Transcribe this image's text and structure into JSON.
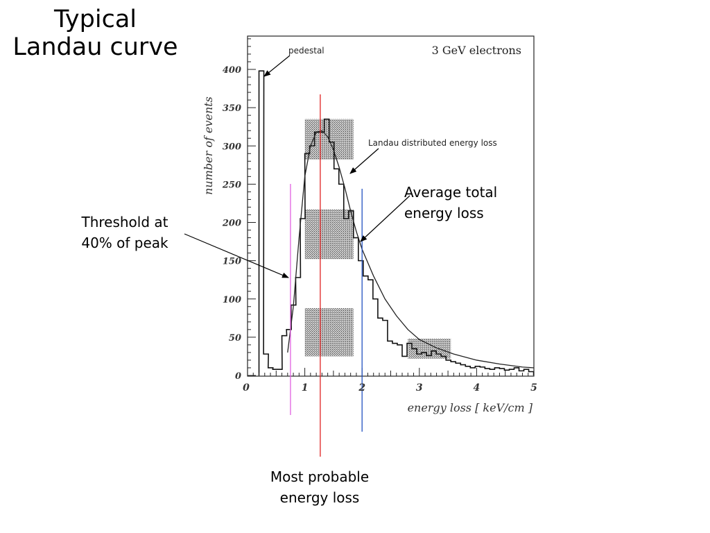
{
  "slide": {
    "title_line1": "Typical",
    "title_line2": "Landau curve",
    "threshold_line1": "Threshold at",
    "threshold_line2": "40% of peak",
    "average_line1": "Average total",
    "average_line2": "energy loss",
    "mpv_line1": "Most probable",
    "mpv_line2": "energy loss"
  },
  "chart_data": {
    "type": "bar",
    "title": "3 GeV electrons",
    "xlabel": "energy loss [ keV/cm ]",
    "ylabel": "number of events",
    "xlim": [
      0,
      5
    ],
    "ylim": [
      0,
      450
    ],
    "x_ticks": [
      "0",
      "1",
      "2",
      "3",
      "4",
      "5"
    ],
    "y_ticks": [
      "0",
      "50",
      "100",
      "150",
      "200",
      "250",
      "300",
      "350",
      "400"
    ],
    "histogram": {
      "bin_width": 0.085,
      "bin_starts": [
        0.2,
        0.28,
        0.36,
        0.44,
        0.52,
        0.6,
        0.68,
        0.76,
        0.84,
        0.92,
        1.0,
        1.085,
        1.17,
        1.255,
        1.34,
        1.425,
        1.51,
        1.595,
        1.68,
        1.765,
        1.85,
        1.935,
        2.02,
        2.105,
        2.19,
        2.275,
        2.36,
        2.445,
        2.53,
        2.615,
        2.7,
        2.785,
        2.87,
        2.955,
        3.04,
        3.125,
        3.21,
        3.295,
        3.38,
        3.465,
        3.55,
        3.635,
        3.72,
        3.805,
        3.89,
        3.975,
        4.06,
        4.145,
        4.23,
        4.315,
        4.4,
        4.485,
        4.57,
        4.655,
        4.74,
        4.825,
        4.91
      ],
      "counts": [
        398,
        28,
        10,
        8,
        8,
        52,
        60,
        92,
        128,
        205,
        290,
        300,
        318,
        318,
        335,
        305,
        270,
        250,
        205,
        215,
        180,
        150,
        130,
        125,
        100,
        75,
        72,
        45,
        42,
        40,
        25,
        42,
        35,
        28,
        30,
        26,
        32,
        28,
        25,
        20,
        18,
        16,
        14,
        12,
        10,
        12,
        11,
        9,
        8,
        10,
        9,
        7,
        8,
        10,
        6,
        8,
        5
      ]
    },
    "landau_curve": {
      "x": [
        0.7,
        0.8,
        0.9,
        1.0,
        1.1,
        1.2,
        1.3,
        1.4,
        1.5,
        1.6,
        1.7,
        1.8,
        1.9,
        2.0,
        2.2,
        2.4,
        2.6,
        2.8,
        3.0,
        3.3,
        3.6,
        4.0,
        4.4,
        4.8,
        5.0
      ],
      "y": [
        30,
        90,
        180,
        260,
        300,
        318,
        320,
        312,
        295,
        272,
        245,
        215,
        188,
        165,
        130,
        100,
        78,
        60,
        47,
        36,
        28,
        20,
        15,
        11,
        10
      ]
    },
    "annotations": [
      {
        "text": "pedestal",
        "x": 0.2,
        "y": 398
      },
      {
        "text": "Landau distributed energy loss",
        "x": 1.8,
        "y": 265
      }
    ],
    "markers": [
      {
        "name": "threshold",
        "x": 0.75,
        "color": "#e060e0"
      },
      {
        "name": "most probable",
        "x": 1.27,
        "color": "#e02020"
      },
      {
        "name": "average",
        "x": 2.0,
        "color": "#2050c0"
      }
    ],
    "shaded_ranges": [
      {
        "x": [
          1.0,
          1.85
        ],
        "y": [
          25,
          88
        ]
      },
      {
        "x": [
          1.0,
          1.85
        ],
        "y": [
          152,
          217
        ]
      },
      {
        "x": [
          1.0,
          1.85
        ],
        "y": [
          282,
          335
        ]
      },
      {
        "x": [
          2.8,
          3.55
        ],
        "y": [
          22,
          48
        ]
      }
    ]
  }
}
